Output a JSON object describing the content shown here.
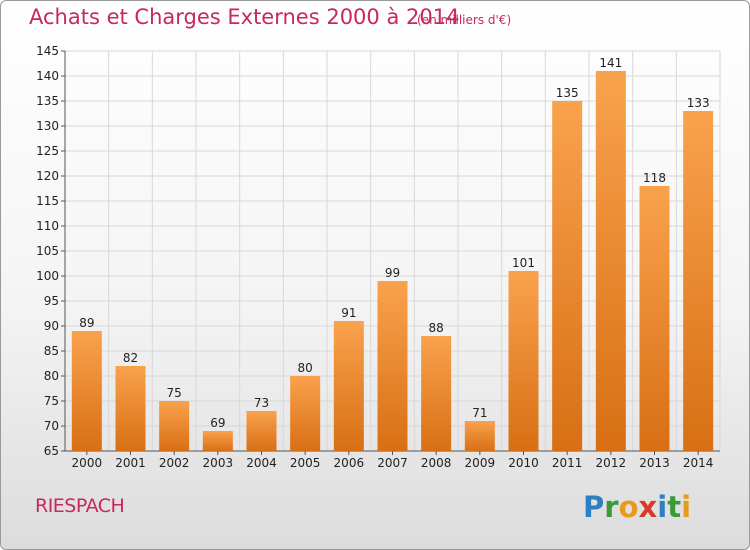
{
  "header": {
    "title": "Achats et Charges Externes 2000 à 2014",
    "subtitle": "(en milliers d'€)"
  },
  "footer": {
    "place": "RIESPACH",
    "logo_text": "Proxiti"
  },
  "colors": {
    "accent": "#c8285c",
    "bar_top": "#f9a24d",
    "bar_bottom": "#d86f14",
    "grid": "#d8d8d8"
  },
  "chart_data": {
    "type": "bar",
    "title": "Achats et Charges Externes 2000 à 2014",
    "subtitle": "(en milliers d'€)",
    "categories": [
      "2000",
      "2001",
      "2002",
      "2003",
      "2004",
      "2005",
      "2006",
      "2007",
      "2008",
      "2009",
      "2010",
      "2011",
      "2012",
      "2013",
      "2014"
    ],
    "values": [
      89,
      82,
      75,
      69,
      73,
      80,
      91,
      99,
      88,
      71,
      101,
      135,
      141,
      118,
      133
    ],
    "ylim": [
      65,
      145
    ],
    "yticks": [
      65,
      70,
      75,
      80,
      85,
      90,
      95,
      100,
      105,
      110,
      115,
      120,
      125,
      130,
      135,
      140,
      145
    ],
    "xlabel": "",
    "ylabel": "",
    "grid": true
  }
}
